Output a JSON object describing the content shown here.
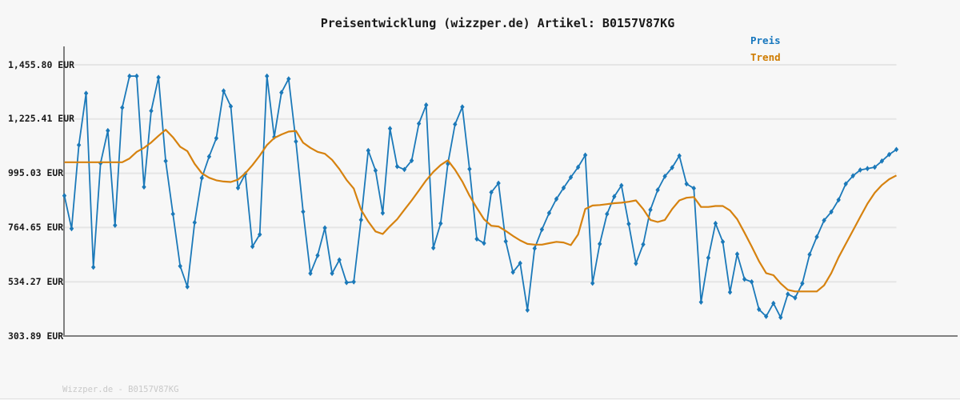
{
  "title": "Preisentwicklung (wizzper.de) Artikel: B0157V87KG",
  "legend": {
    "preis": "Preis",
    "trend": "Trend"
  },
  "footer": {
    "text": "Wizzper.de - B0157V87KG"
  },
  "colors": {
    "background": "#f7f7f7",
    "preis_line": "#1b79b9",
    "trend_line": "#d6820f",
    "legend_preis_text": "#1777be",
    "legend_trend_text": "#cf7c00",
    "grid": "#e5e5e5",
    "spine": "#7f7f7f",
    "title_text": "#1a1a1a",
    "tick_text": "#1a1a1a",
    "footer_text": "#c9c9c9"
  },
  "chart_data": {
    "type": "line",
    "title": "Preisentwicklung (wizzper.de) Artikel: B0157V87KG",
    "ylabel": "EUR",
    "xlabel": "",
    "grid": "horizontal",
    "legend_position": "top-right",
    "ylim": [
      303.89,
      1455.8
    ],
    "yticks": [
      {
        "value": 1455.8,
        "label": "1,455.80 EUR"
      },
      {
        "value": 1225.41,
        "label": "1,225.41 EUR"
      },
      {
        "value": 995.03,
        "label": "995.03 EUR"
      },
      {
        "value": 764.65,
        "label": "764.65 EUR"
      },
      {
        "value": 534.27,
        "label": "534.27 EUR"
      },
      {
        "value": 303.89,
        "label": "303.89 EUR"
      }
    ],
    "series": [
      {
        "name": "Preis",
        "color": "#1b79b9",
        "marker": "diamond",
        "values": [
          900,
          760,
          1115,
          1335,
          596,
          1038,
          1176,
          774,
          1274,
          1408,
          1408,
          937,
          1260,
          1402,
          1047,
          822,
          601,
          513,
          786,
          975,
          1066,
          1144,
          1345,
          1279,
          933,
          992,
          684,
          735,
          1408,
          1149,
          1338,
          1396,
          1130,
          832,
          570,
          646,
          763,
          570,
          627,
          531,
          534,
          797,
          1092,
          1007,
          826,
          1185,
          1024,
          1011,
          1049,
          1206,
          1285,
          678,
          782,
          1035,
          1203,
          1277,
          1013,
          716,
          698,
          914,
          953,
          706,
          575,
          613,
          414,
          676,
          756,
          826,
          886,
          933,
          978,
          1021,
          1072,
          528,
          695,
          822,
          896,
          943,
          780,
          612,
          693,
          840,
          924,
          982,
          1019,
          1069,
          950,
          931,
          448,
          636,
          782,
          704,
          490,
          652,
          545,
          534,
          417,
          387,
          443,
          383,
          482,
          466,
          527,
          650,
          725,
          795,
          831,
          882,
          950,
          984,
          1009,
          1015,
          1021,
          1047,
          1075,
          1096
        ]
      },
      {
        "name": "Trend",
        "color": "#d6820f",
        "marker": "none",
        "values": [
          1042,
          1042,
          1042,
          1042,
          1042,
          1042,
          1042,
          1042,
          1042,
          1058,
          1086,
          1103,
          1126,
          1154,
          1180,
          1148,
          1108,
          1089,
          1035,
          995,
          976,
          965,
          960,
          958,
          968,
          995,
          1030,
          1070,
          1115,
          1145,
          1160,
          1172,
          1175,
          1125,
          1103,
          1086,
          1078,
          1052,
          1013,
          967,
          930,
          840,
          790,
          748,
          737,
          770,
          800,
          840,
          880,
          922,
          965,
          1001,
          1030,
          1050,
          1010,
          960,
          900,
          848,
          800,
          772,
          769,
          750,
          729,
          710,
          695,
          692,
          692,
          698,
          704,
          701,
          690,
          735,
          843,
          858,
          860,
          864,
          868,
          870,
          874,
          880,
          843,
          797,
          788,
          797,
          843,
          880,
          891,
          894,
          852,
          852,
          856,
          856,
          837,
          800,
          743,
          684,
          622,
          571,
          562,
          527,
          500,
          493,
          493,
          493,
          493,
          519,
          571,
          638,
          695,
          752,
          810,
          866,
          912,
          945,
          970,
          986
        ]
      }
    ]
  }
}
